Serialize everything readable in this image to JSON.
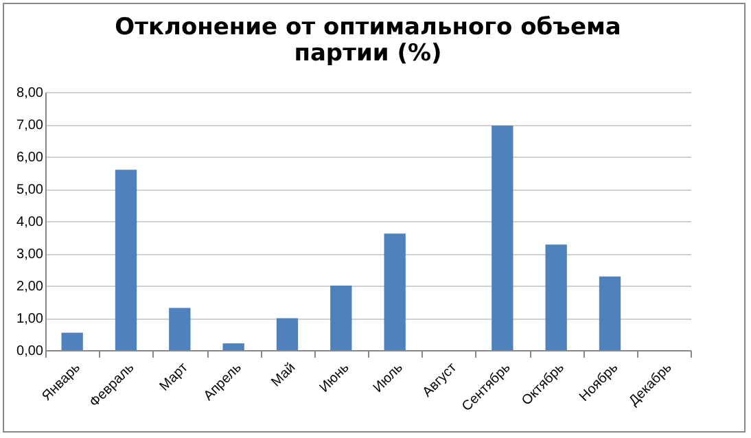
{
  "chart_data": {
    "type": "bar",
    "title": "Отклонение от оптимального объема партии (%)",
    "categories": [
      "Январь",
      "Февраль",
      "Март",
      "Апрель",
      "Май",
      "Июнь",
      "Июль",
      "Август",
      "Сентябрь",
      "Октябрь",
      "Ноябрь",
      "Декабрь"
    ],
    "values": [
      0.54,
      5.59,
      1.31,
      0.21,
      0.99,
      2.0,
      3.61,
      0,
      6.96,
      3.27,
      2.28,
      0
    ],
    "color": "#4f81bd",
    "ylim": [
      0,
      8
    ],
    "yticks": [
      {
        "value": 0,
        "label": "0,00"
      },
      {
        "value": 1,
        "label": "1,00"
      },
      {
        "value": 2,
        "label": "2,00"
      },
      {
        "value": 3,
        "label": "3,00"
      },
      {
        "value": 4,
        "label": "4,00"
      },
      {
        "value": 5,
        "label": "5,00"
      },
      {
        "value": 6,
        "label": "6,00"
      },
      {
        "value": 7,
        "label": "7,00"
      },
      {
        "value": 8,
        "label": "8,00"
      }
    ],
    "grid": "y"
  }
}
